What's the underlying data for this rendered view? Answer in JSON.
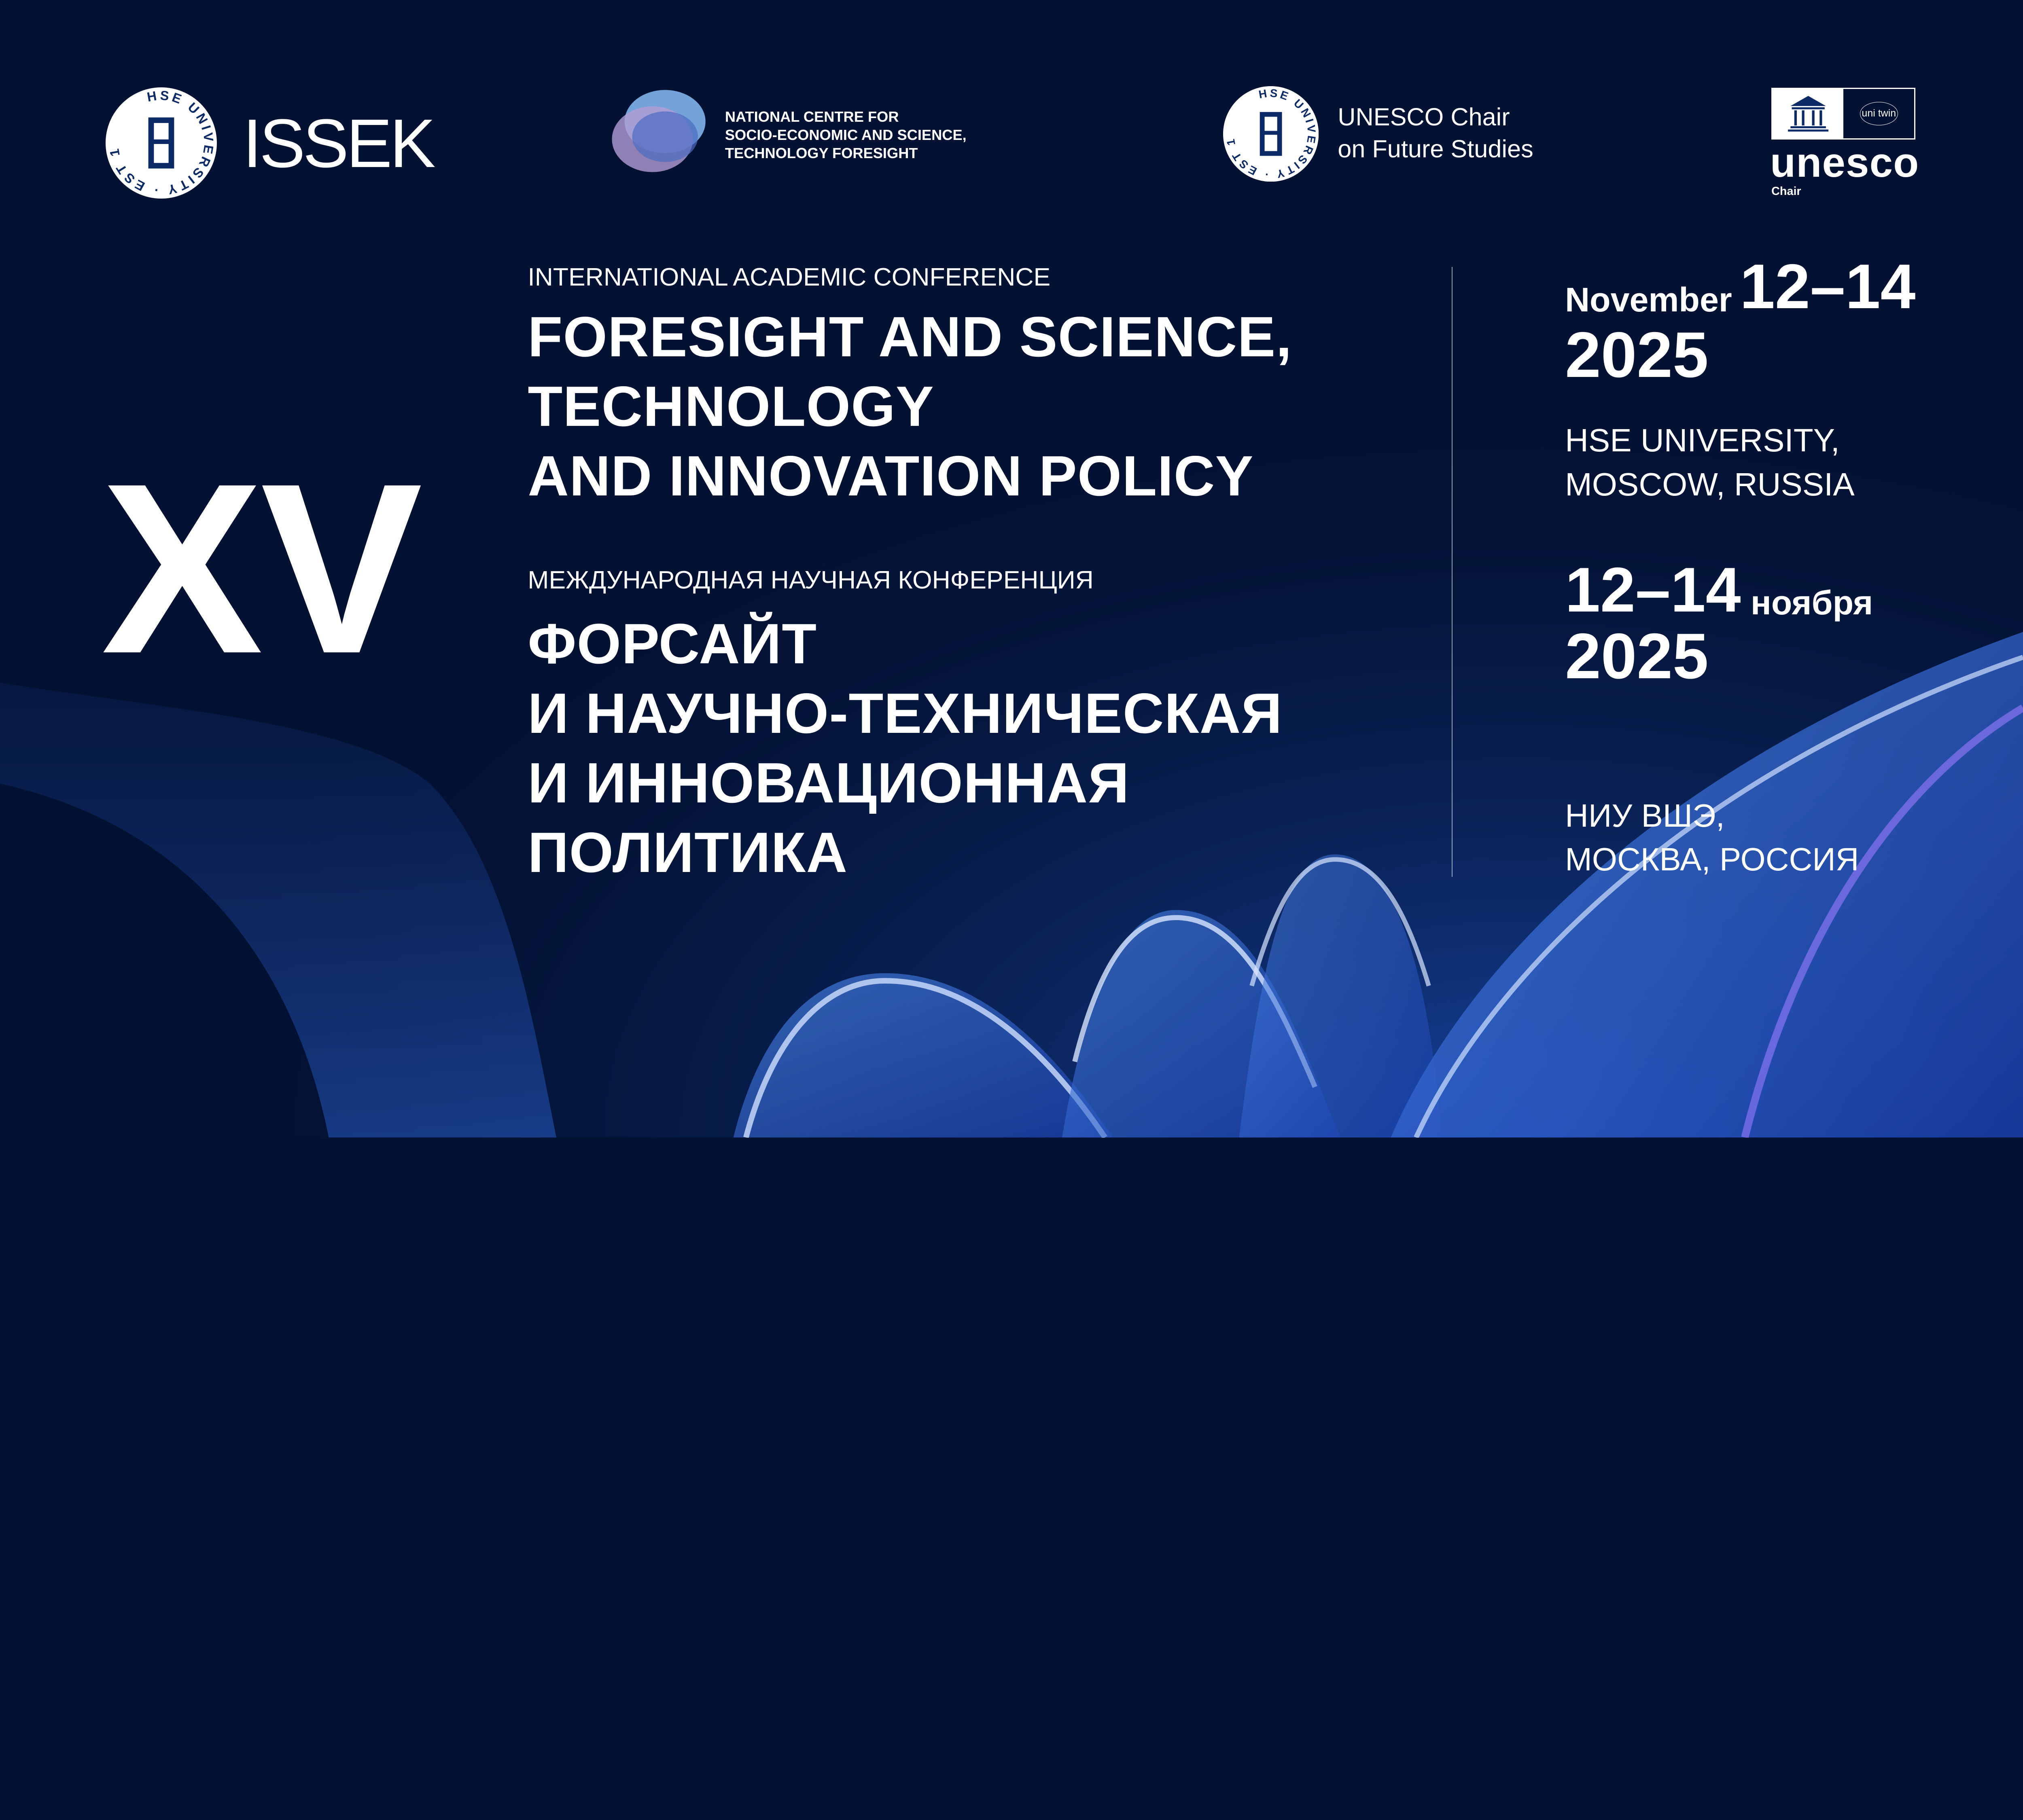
{
  "logos": {
    "hse_seal_text": "HSE UNIVERSITY",
    "hse_seal_est": "EST 1992",
    "issek": "ISSEK",
    "ncf_lines": [
      "NATIONAL CENTRE FOR",
      "SOCIO-ECONOMIC AND SCIENCE,",
      "TECHNOLOGY FORESIGHT"
    ],
    "unesco_chair_lines": [
      "UNESCO Chair",
      "on Future Studies"
    ],
    "unesco_mark": "unesco",
    "unesco_sub": "Chair",
    "unitwin": "uni twin"
  },
  "edition": "XV",
  "english": {
    "subtitle": "INTERNATIONAL ACADEMIC CONFERENCE",
    "title_lines": [
      "FORESIGHT AND SCIENCE,",
      "TECHNOLOGY",
      "AND INNOVATION POLICY"
    ]
  },
  "russian": {
    "subtitle": "МЕЖДУНАРОДНАЯ НАУЧНАЯ КОНФЕРЕНЦИЯ",
    "title_lines": [
      "ФОРСАЙТ",
      "И НАУЧНО-ТЕХНИЧЕСКАЯ",
      "И ИННОВАЦИОННАЯ",
      "ПОЛИТИКА"
    ]
  },
  "dates_en": {
    "month": "November",
    "days": "12–14",
    "year": "2025"
  },
  "venue_en": [
    "HSE UNIVERSITY,",
    "MOSCOW, RUSSIA"
  ],
  "dates_ru": {
    "days": "12–14",
    "month": "ноября",
    "year": "2025"
  },
  "venue_ru": [
    "НИУ ВШЭ,",
    "МОСКВА, РОССИЯ"
  ],
  "colors": {
    "background": "#031132",
    "ribbon": "#2f6fe0",
    "text": "#ffffff"
  }
}
